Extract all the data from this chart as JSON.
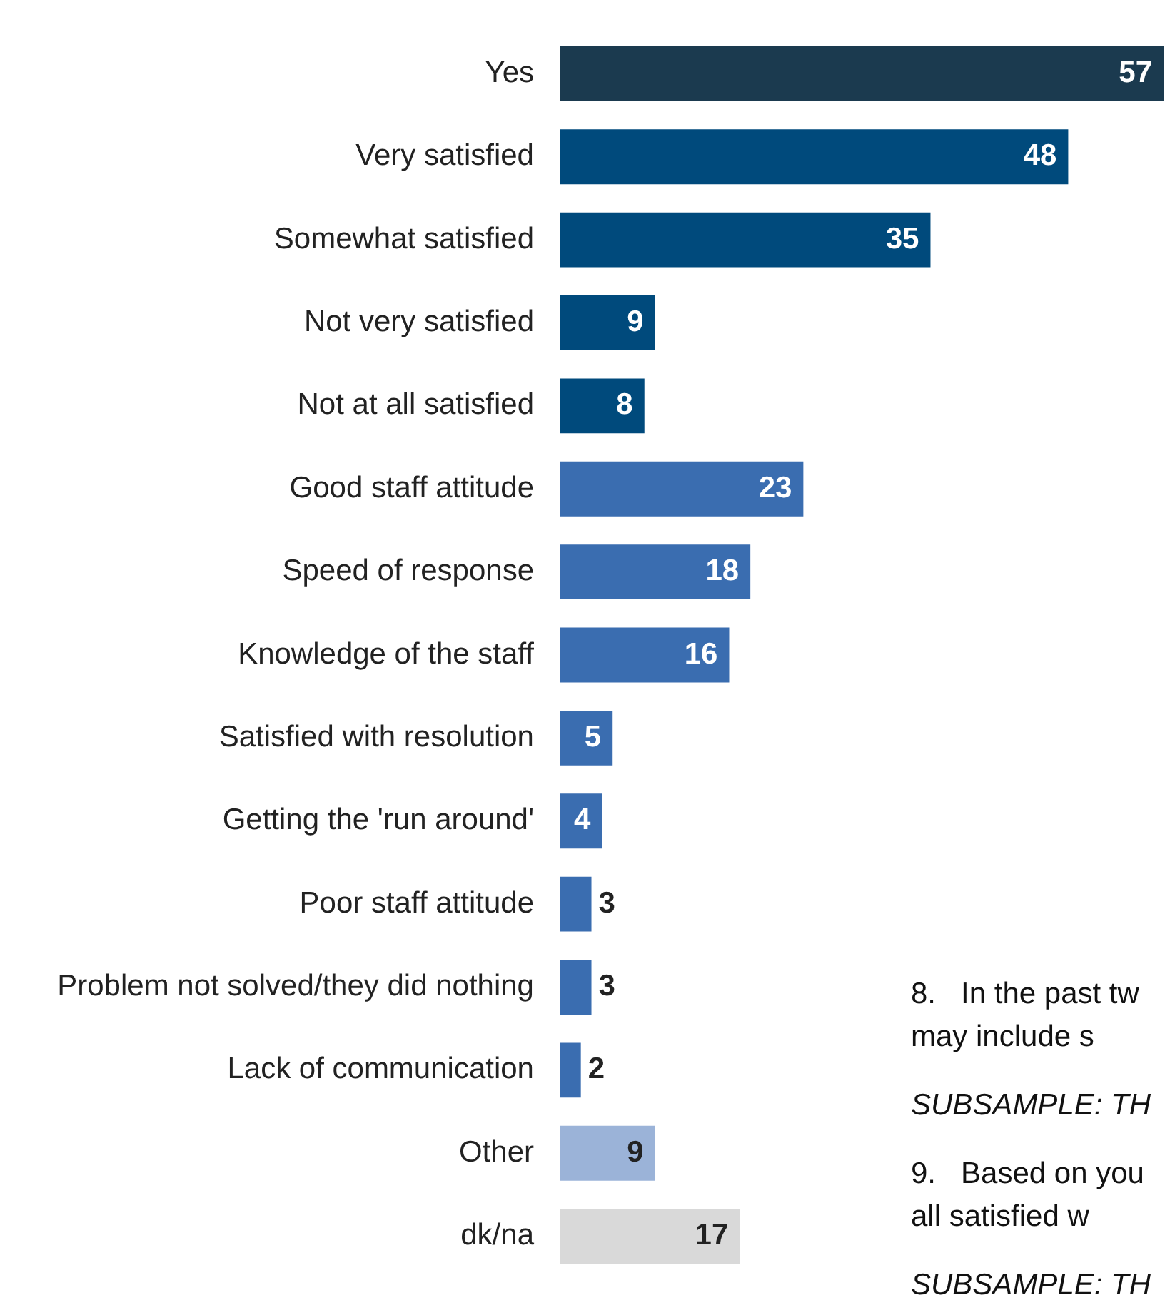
{
  "chart_data": {
    "type": "bar",
    "orientation": "horizontal",
    "data_labels": true,
    "legend": false,
    "xlim": [
      0,
      57
    ],
    "categories": [
      "Yes",
      "Very satisfied",
      "Somewhat satisfied",
      "Not very satisfied",
      "Not at all satisfied",
      "Good staff attitude",
      "Speed of response",
      "Knowledge of the staff",
      "Satisfied with resolution",
      "Getting the 'run around'",
      "Poor staff attitude",
      "Problem not solved/they did nothing",
      "Lack of communication",
      "Other",
      "dk/na"
    ],
    "values": [
      57,
      48,
      35,
      9,
      8,
      23,
      18,
      16,
      5,
      4,
      3,
      3,
      2,
      9,
      17
    ],
    "colors": [
      "#1b3a4f",
      "#004a7c",
      "#004a7c",
      "#004a7c",
      "#004a7c",
      "#3a6db0",
      "#3a6db0",
      "#3a6db0",
      "#3a6db0",
      "#3a6db0",
      "#3a6db0",
      "#3a6db0",
      "#3a6db0",
      "#9bb3d8",
      "#d9d9d9"
    ],
    "annotations": [
      "8.   In the past tw",
      "may include s",
      "SUBSAMPLE: TH",
      "9.   Based on you",
      "all satisfied w",
      "SUBSAMPLE: TH"
    ]
  }
}
